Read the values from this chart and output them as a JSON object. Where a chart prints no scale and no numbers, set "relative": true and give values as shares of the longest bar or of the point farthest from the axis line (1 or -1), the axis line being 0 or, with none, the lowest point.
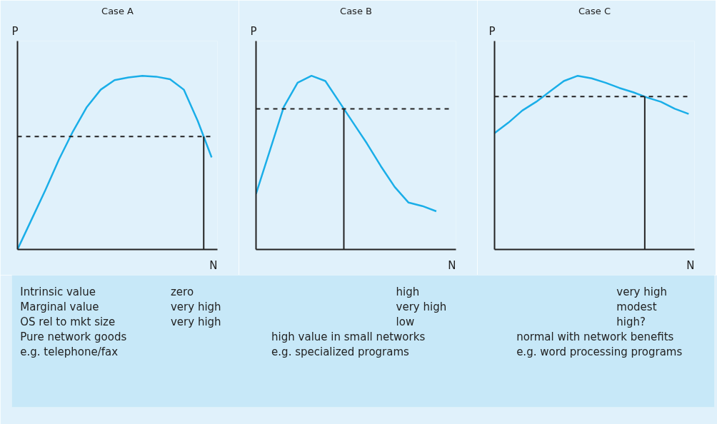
{
  "chart_data": [
    {
      "type": "line",
      "title": "Case A",
      "xlabel": "N",
      "ylabel": "P",
      "relative": true,
      "grid": false,
      "marker": "none",
      "line_style": "solid",
      "categories": [
        null,
        null,
        null,
        null,
        null,
        null,
        null,
        null,
        null,
        null,
        null,
        null,
        null,
        null,
        null
      ],
      "series": [
        {
          "color": "#1aaee8",
          "values": [
            0,
            0.17,
            0.34,
            0.52,
            0.68,
            0.82,
            0.92,
            0.975,
            0.99,
            1.0,
            0.995,
            0.98,
            0.92,
            0.74,
            0.53
          ]
        }
      ],
      "ref_lines": [
        {
          "axis": "y",
          "value": 0.65,
          "line_style": "dashed",
          "color": "#222222"
        }
      ]
    },
    {
      "type": "line",
      "title": "Case B",
      "xlabel": "N",
      "ylabel": "P",
      "relative": true,
      "grid": false,
      "marker": "none",
      "line_style": "solid",
      "categories": [
        null,
        null,
        null,
        null,
        null,
        null,
        null,
        null,
        null,
        null,
        null,
        null,
        null,
        null,
        null
      ],
      "series": [
        {
          "color": "#1aaee8",
          "values": [
            0.32,
            0.57,
            0.82,
            0.96,
            1.0,
            0.97,
            0.85,
            0.73,
            0.61,
            0.48,
            0.36,
            0.27,
            0.25,
            0.22,
            null
          ]
        }
      ],
      "ref_lines": [
        {
          "axis": "y",
          "value": 0.81,
          "line_style": "dashed",
          "color": "#222222"
        }
      ]
    },
    {
      "type": "line",
      "title": "Case C",
      "xlabel": "N",
      "ylabel": "P",
      "relative": true,
      "grid": false,
      "marker": "none",
      "line_style": "solid",
      "categories": [
        null,
        null,
        null,
        null,
        null,
        null,
        null,
        null,
        null,
        null,
        null,
        null,
        null,
        null,
        null
      ],
      "series": [
        {
          "color": "#1aaee8",
          "values": [
            0.67,
            0.73,
            0.8,
            0.85,
            0.91,
            0.97,
            1.0,
            0.985,
            0.96,
            0.93,
            0.905,
            0.875,
            0.85,
            0.81,
            0.78
          ]
        }
      ],
      "ref_lines": [
        {
          "axis": "y",
          "value": 0.88,
          "line_style": "dashed",
          "color": "#222222"
        }
      ]
    },
    {
      "type": "other",
      "annotations": [
        "Intrinsic value",
        "zero",
        "high",
        "very high",
        "Marginal value",
        "very high",
        "very high",
        "modest",
        "OS rel to mkt size",
        "very high",
        "low",
        "high?",
        "Pure network goods",
        "high value in small networks",
        "normal with network benefits",
        "e.g. telephone/fax",
        "e.g. specialized programs",
        "e.g. word processing programs"
      ]
    }
  ]
}
